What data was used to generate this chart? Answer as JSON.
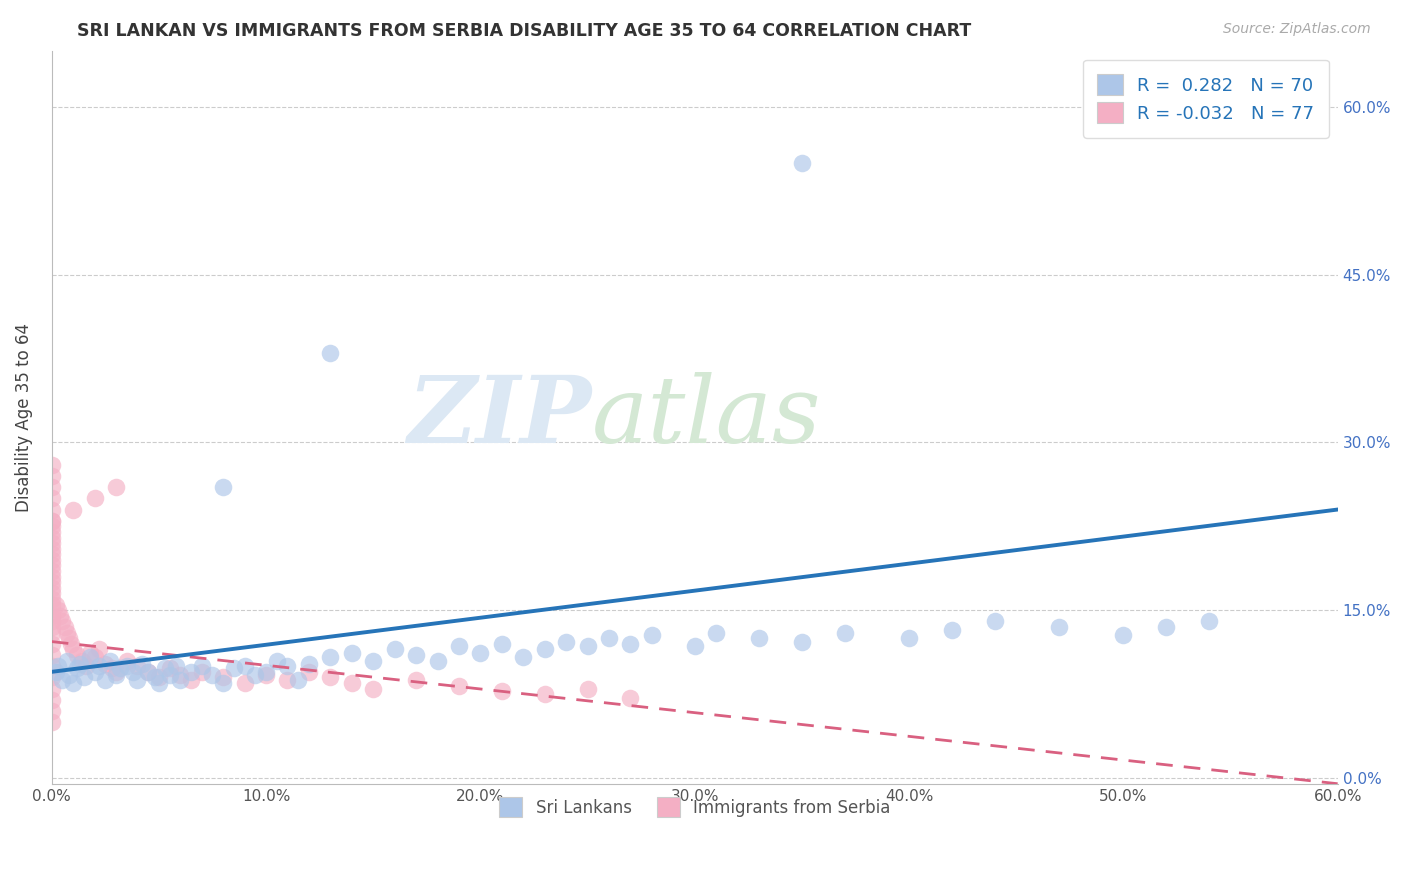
{
  "title": "SRI LANKAN VS IMMIGRANTS FROM SERBIA DISABILITY AGE 35 TO 64 CORRELATION CHART",
  "source": "Source: ZipAtlas.com",
  "ylabel": "Disability Age 35 to 64",
  "xmin": 0.0,
  "xmax": 0.6,
  "ymin": -0.005,
  "ymax": 0.65,
  "yticks": [
    0.0,
    0.15,
    0.3,
    0.45,
    0.6
  ],
  "xticks": [
    0.0,
    0.1,
    0.2,
    0.3,
    0.4,
    0.5,
    0.6
  ],
  "xtick_labels": [
    "0.0%",
    "10.0%",
    "20.0%",
    "30.0%",
    "40.0%",
    "50.0%",
    "60.0%"
  ],
  "ytick_labels_right": [
    "0.0%",
    "15.0%",
    "30.0%",
    "45.0%",
    "60.0%"
  ],
  "legend1_label": "R =  0.282   N = 70",
  "legend2_label": "R = -0.032   N = 77",
  "series1_color": "#adc6e8",
  "series2_color": "#f4afc4",
  "trendline1_color": "#2674b8",
  "trendline2_color": "#d96080",
  "marker_size": 160,
  "marker_alpha": 0.65,
  "sri_x": [
    0.002,
    0.003,
    0.005,
    0.007,
    0.008,
    0.01,
    0.012,
    0.013,
    0.015,
    0.018,
    0.02,
    0.022,
    0.025,
    0.027,
    0.03,
    0.032,
    0.035,
    0.038,
    0.04,
    0.042,
    0.045,
    0.048,
    0.05,
    0.053,
    0.055,
    0.058,
    0.06,
    0.065,
    0.07,
    0.075,
    0.08,
    0.085,
    0.09,
    0.095,
    0.1,
    0.105,
    0.11,
    0.115,
    0.12,
    0.13,
    0.14,
    0.15,
    0.16,
    0.17,
    0.18,
    0.19,
    0.2,
    0.21,
    0.22,
    0.23,
    0.24,
    0.25,
    0.26,
    0.27,
    0.28,
    0.3,
    0.31,
    0.33,
    0.35,
    0.37,
    0.4,
    0.42,
    0.44,
    0.47,
    0.5,
    0.52,
    0.54,
    0.13,
    0.35,
    0.08
  ],
  "sri_y": [
    0.095,
    0.1,
    0.088,
    0.105,
    0.092,
    0.085,
    0.098,
    0.102,
    0.09,
    0.108,
    0.095,
    0.1,
    0.088,
    0.105,
    0.092,
    0.098,
    0.1,
    0.095,
    0.088,
    0.102,
    0.095,
    0.09,
    0.085,
    0.098,
    0.092,
    0.1,
    0.088,
    0.095,
    0.1,
    0.092,
    0.085,
    0.098,
    0.1,
    0.092,
    0.095,
    0.105,
    0.1,
    0.088,
    0.102,
    0.108,
    0.112,
    0.105,
    0.115,
    0.11,
    0.105,
    0.118,
    0.112,
    0.12,
    0.108,
    0.115,
    0.122,
    0.118,
    0.125,
    0.12,
    0.128,
    0.118,
    0.13,
    0.125,
    0.122,
    0.13,
    0.125,
    0.132,
    0.14,
    0.135,
    0.128,
    0.135,
    0.14,
    0.38,
    0.55,
    0.26
  ],
  "serbia_x": [
    0.0,
    0.0,
    0.0,
    0.0,
    0.0,
    0.0,
    0.0,
    0.0,
    0.0,
    0.0,
    0.0,
    0.0,
    0.0,
    0.0,
    0.0,
    0.0,
    0.0,
    0.0,
    0.0,
    0.0,
    0.002,
    0.003,
    0.004,
    0.005,
    0.006,
    0.007,
    0.008,
    0.009,
    0.01,
    0.012,
    0.014,
    0.016,
    0.018,
    0.02,
    0.022,
    0.025,
    0.028,
    0.03,
    0.035,
    0.04,
    0.045,
    0.05,
    0.055,
    0.06,
    0.065,
    0.07,
    0.08,
    0.09,
    0.1,
    0.11,
    0.12,
    0.13,
    0.14,
    0.15,
    0.17,
    0.19,
    0.21,
    0.23,
    0.25,
    0.27,
    0.01,
    0.02,
    0.03,
    0.0,
    0.0,
    0.0,
    0.0,
    0.0,
    0.0,
    0.0,
    0.0,
    0.0,
    0.0,
    0.0,
    0.0,
    0.0,
    0.0
  ],
  "serbia_y": [
    0.155,
    0.16,
    0.165,
    0.17,
    0.175,
    0.18,
    0.185,
    0.19,
    0.195,
    0.2,
    0.205,
    0.21,
    0.215,
    0.22,
    0.225,
    0.23,
    0.14,
    0.145,
    0.135,
    0.13,
    0.155,
    0.15,
    0.145,
    0.14,
    0.135,
    0.13,
    0.125,
    0.12,
    0.115,
    0.11,
    0.105,
    0.1,
    0.112,
    0.108,
    0.115,
    0.102,
    0.098,
    0.095,
    0.105,
    0.1,
    0.095,
    0.09,
    0.098,
    0.092,
    0.088,
    0.095,
    0.09,
    0.085,
    0.092,
    0.088,
    0.095,
    0.09,
    0.085,
    0.08,
    0.088,
    0.082,
    0.078,
    0.075,
    0.08,
    0.072,
    0.24,
    0.25,
    0.26,
    0.28,
    0.27,
    0.26,
    0.25,
    0.24,
    0.23,
    0.12,
    0.11,
    0.1,
    0.09,
    0.08,
    0.07,
    0.06,
    0.05
  ]
}
